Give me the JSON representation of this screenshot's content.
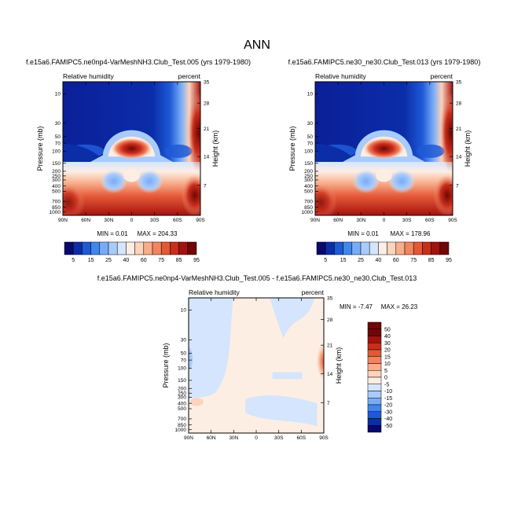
{
  "page_title": "ANN",
  "panels": [
    {
      "title": "f.e15a6.FAMIPC5.ne0np4-VarMeshNH3.Club_Test.005 (yrs 1979-1980)",
      "left_label": "Relative humidity",
      "right_label": "percent",
      "min_text": "MIN =  0.01",
      "max_text": "MAX = 204.33"
    },
    {
      "title": "f.e15a6.FAMIPC5.ne30_ne30.Club_Test.013 (yrs 1979-1980)",
      "left_label": "Relative humidity",
      "right_label": "percent",
      "min_text": "MIN =  0.01",
      "max_text": "MAX = 178.96"
    },
    {
      "title": "f.e15a6.FAMIPC5.ne0np4-VarMeshNH3.Club_Test.005 - f.e15a6.FAMIPC5.ne30_ne30.Club_Test.013",
      "left_label": "Relative humidity",
      "right_label": "percent",
      "min_text": "MIN =  -7.47",
      "max_text": "MAX =  26.23"
    }
  ],
  "chart_data": {
    "type": "heatmap",
    "xlabel": "",
    "ylabel": "Pressure (mb)",
    "y2label": "Height (km)",
    "x_ticks": [
      "90N",
      "60N",
      "30N",
      "0",
      "30S",
      "60S",
      "90S"
    ],
    "pressure_ticks": [
      "10",
      "30",
      "50",
      "70",
      "100",
      "150",
      "200",
      "250",
      "300",
      "400",
      "500",
      "700",
      "850",
      "1000"
    ],
    "height_ticks": [
      "35",
      "28",
      "21",
      "14",
      "7"
    ],
    "levels_main": [
      "5",
      "15",
      "25",
      "40",
      "60",
      "75",
      "85",
      "95"
    ],
    "levels_diff": [
      "50",
      "40",
      "30",
      "20",
      "15",
      "10",
      "5",
      "0",
      "-5",
      "-10",
      "-15",
      "-20",
      "-30",
      "-40",
      "-50"
    ],
    "colors_main": [
      "#08086e",
      "#0b2da8",
      "#1f59d6",
      "#3f86ef",
      "#78abf7",
      "#a9cbfb",
      "#d4e5fd",
      "#fdeee4",
      "#fcd3bb",
      "#f8ad8b",
      "#f28460",
      "#e45836",
      "#c92e1c",
      "#a3120f",
      "#700606"
    ],
    "colors_diff": [
      "#700606",
      "#a3120f",
      "#c92e1c",
      "#e45836",
      "#f28460",
      "#f8ad8b",
      "#fcd3bb",
      "#fdeee4",
      "#d4e5fd",
      "#a9cbfb",
      "#78abf7",
      "#3f86ef",
      "#1f59d6",
      "#0b2da8",
      "#08086e"
    ]
  }
}
